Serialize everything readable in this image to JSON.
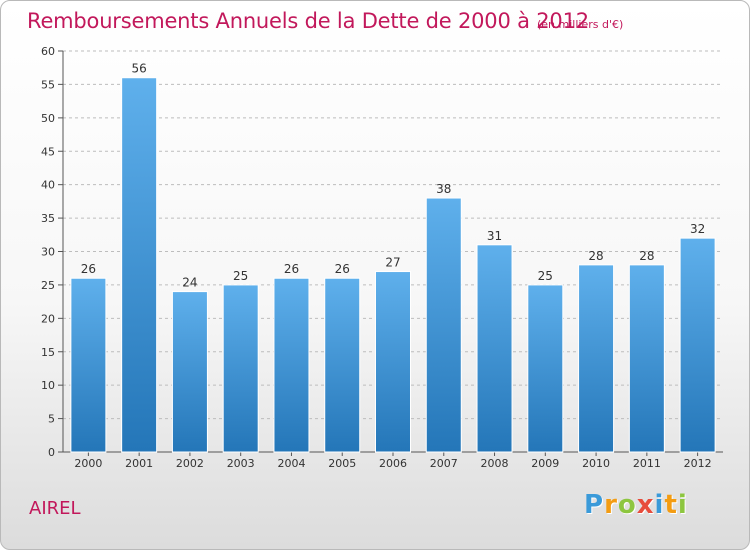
{
  "header": {
    "title": "Remboursements Annuels de la Dette de 2000 à 2012",
    "subtitle": "(en milliers d'€)"
  },
  "footer": {
    "place": "AIREL",
    "logo": {
      "text": "Proxiti",
      "letters": [
        {
          "char": "P",
          "color": "#3a9ad9"
        },
        {
          "char": "r",
          "color": "#f39c12"
        },
        {
          "char": "o",
          "color": "#8dc63f"
        },
        {
          "char": "x",
          "color": "#e74c3c"
        },
        {
          "char": "i",
          "color": "#3a9ad9"
        },
        {
          "char": "t",
          "color": "#f39c12"
        },
        {
          "char": "i",
          "color": "#8dc63f"
        }
      ]
    }
  },
  "chart_data": {
    "type": "bar",
    "categories": [
      "2000",
      "2001",
      "2002",
      "2003",
      "2004",
      "2005",
      "2006",
      "2007",
      "2008",
      "2009",
      "2010",
      "2011",
      "2012"
    ],
    "values": [
      26,
      56,
      24,
      25,
      26,
      26,
      27,
      38,
      31,
      25,
      28,
      28,
      32
    ],
    "ylim": [
      0,
      60
    ],
    "yticks": [
      0,
      5,
      10,
      15,
      20,
      25,
      30,
      35,
      40,
      45,
      50,
      55,
      60
    ],
    "grid": true,
    "colors": {
      "bar_light": "#5fb0ec",
      "bar_dark": "#2476b8",
      "grid": "#bdbdbd",
      "axis": "#555555"
    }
  }
}
